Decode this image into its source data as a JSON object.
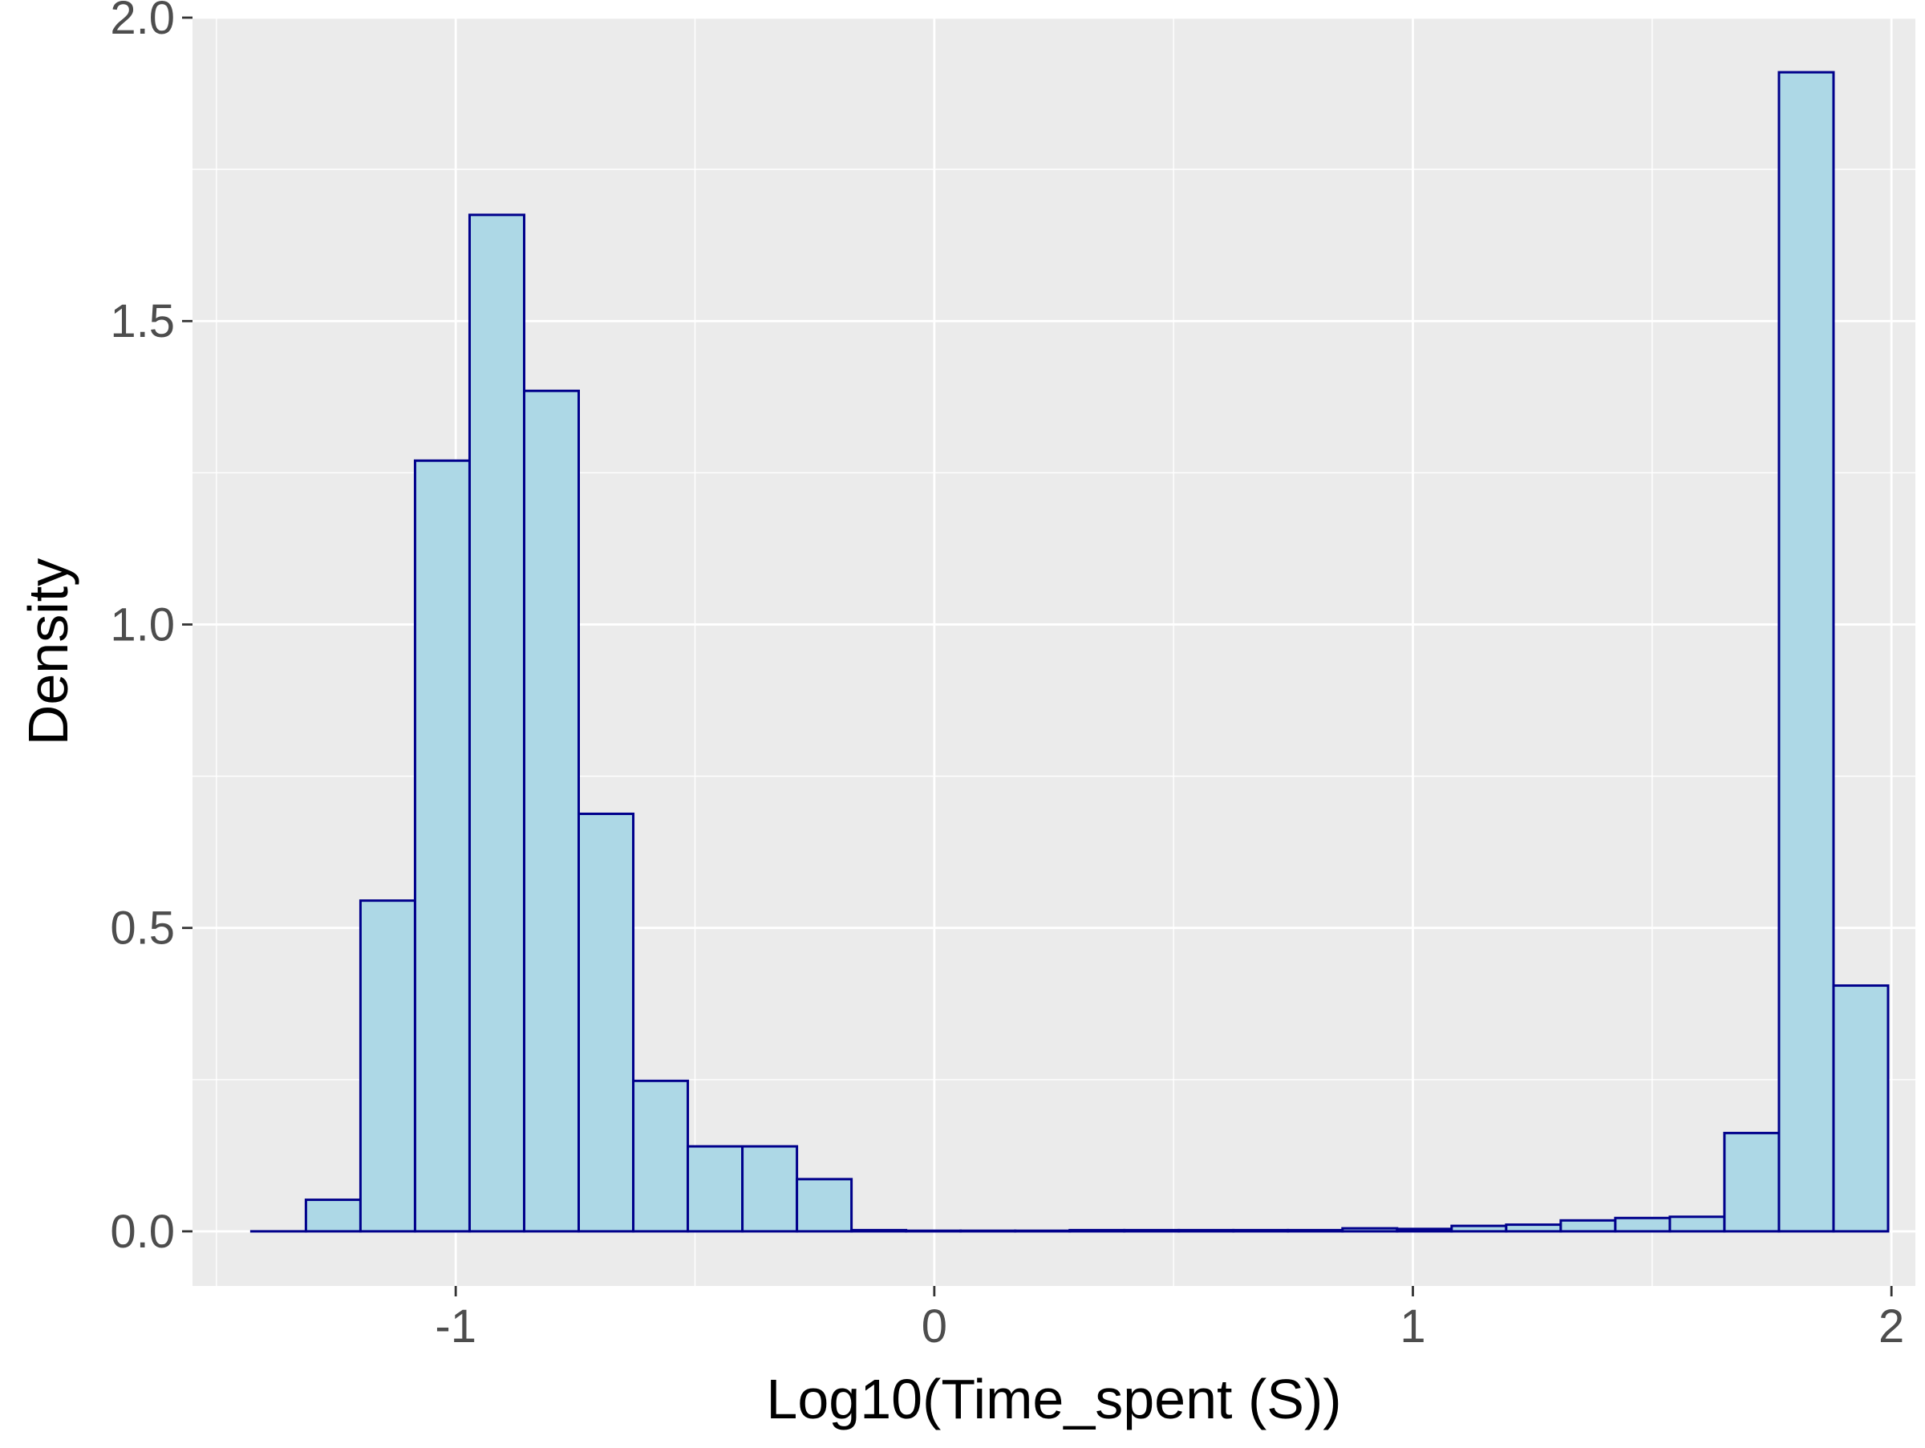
{
  "chart_data": {
    "type": "bar",
    "subtype": "histogram",
    "title": "",
    "xlabel": "Log10(Time_spent (S))",
    "ylabel": "Density",
    "xlim": [
      -1.55,
      2.05
    ],
    "ylim": [
      -0.09,
      2.0
    ],
    "xticks": [
      -1,
      0,
      1,
      2
    ],
    "xtick_labels": [
      "-1",
      "0",
      "1",
      "2"
    ],
    "yticks": [
      0.0,
      0.5,
      1.0,
      1.5,
      2.0
    ],
    "ytick_labels": [
      "0.0",
      "0.5",
      "1.0",
      "1.5",
      "2.0"
    ],
    "grid": true,
    "bin_edges": [
      -1.427,
      -1.313,
      -1.199,
      -1.085,
      -0.971,
      -0.857,
      -0.743,
      -0.629,
      -0.515,
      -0.401,
      -0.287,
      -0.173,
      -0.059,
      0.055,
      0.169,
      0.283,
      0.397,
      0.511,
      0.625,
      0.739,
      0.853,
      0.967,
      1.081,
      1.195,
      1.309,
      1.423,
      1.537,
      1.651,
      1.765,
      1.879,
      1.993
    ],
    "values": [
      0.0,
      0.052,
      0.545,
      1.27,
      1.675,
      1.385,
      0.688,
      0.248,
      0.14,
      0.14,
      0.086,
      0.002,
      0.001,
      0.001,
      0.001,
      0.002,
      0.002,
      0.002,
      0.002,
      0.002,
      0.005,
      0.004,
      0.009,
      0.011,
      0.018,
      0.022,
      0.024,
      0.162,
      1.91,
      0.405
    ],
    "colors": {
      "bar_fill": "#add8e6",
      "bar_outline": "#00008b",
      "panel_background": "#ebebeb",
      "grid_major": "#ffffff",
      "grid_minor": "#f5f5f5"
    }
  }
}
